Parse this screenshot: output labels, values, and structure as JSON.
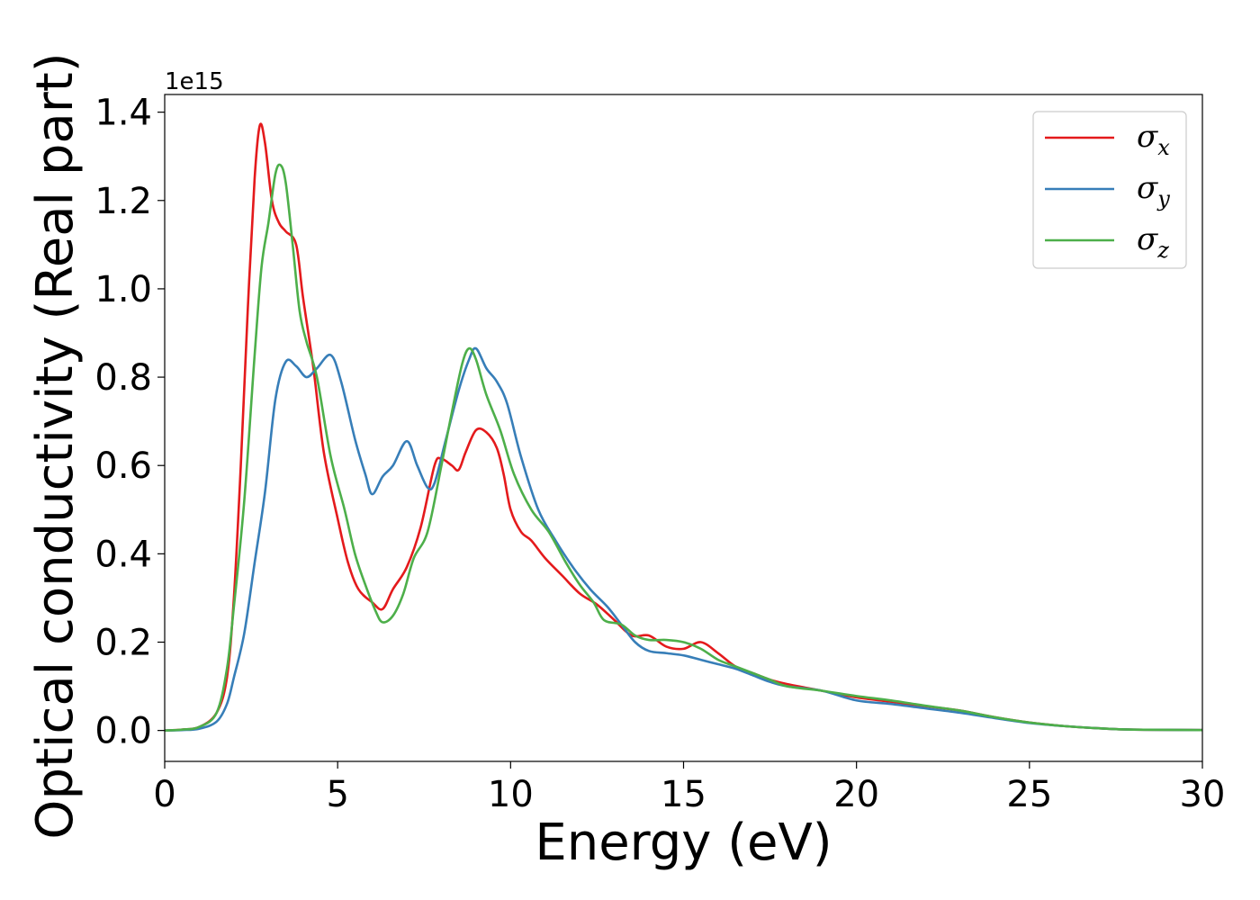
{
  "chart_data": {
    "type": "line",
    "xlabel": "Energy (eV)",
    "ylabel": "Optical conductivity (Real part)",
    "y_offset_label": "1e15",
    "xlim": [
      0,
      30
    ],
    "ylim": [
      -0.07,
      1.44
    ],
    "xticks": [
      0,
      5,
      10,
      15,
      20,
      25,
      30
    ],
    "yticks": [
      0.0,
      0.2,
      0.4,
      0.6,
      0.8,
      1.0,
      1.2,
      1.4
    ],
    "ytick_labels": [
      "0.0",
      "0.2",
      "0.4",
      "0.6",
      "0.8",
      "1.0",
      "1.2",
      "1.4"
    ],
    "xtick_labels": [
      "0",
      "5",
      "10",
      "15",
      "20",
      "25",
      "30"
    ],
    "grid": false,
    "legend_position": "top-right",
    "series": [
      {
        "name": "σx",
        "name_base": "σ",
        "name_sub": "x",
        "color": "#e41a1c",
        "points": [
          [
            0,
            0
          ],
          [
            0.5,
            0.002
          ],
          [
            1,
            0.008
          ],
          [
            1.5,
            0.04
          ],
          [
            1.8,
            0.12
          ],
          [
            2.0,
            0.3
          ],
          [
            2.2,
            0.6
          ],
          [
            2.4,
            0.95
          ],
          [
            2.6,
            1.25
          ],
          [
            2.75,
            1.37
          ],
          [
            2.9,
            1.33
          ],
          [
            3.1,
            1.2
          ],
          [
            3.3,
            1.15
          ],
          [
            3.5,
            1.13
          ],
          [
            3.8,
            1.1
          ],
          [
            4.0,
            0.98
          ],
          [
            4.3,
            0.82
          ],
          [
            4.6,
            0.63
          ],
          [
            5.0,
            0.48
          ],
          [
            5.3,
            0.38
          ],
          [
            5.6,
            0.32
          ],
          [
            6.0,
            0.29
          ],
          [
            6.3,
            0.275
          ],
          [
            6.6,
            0.32
          ],
          [
            7.0,
            0.37
          ],
          [
            7.4,
            0.46
          ],
          [
            7.8,
            0.6
          ],
          [
            8.0,
            0.615
          ],
          [
            8.3,
            0.6
          ],
          [
            8.5,
            0.59
          ],
          [
            8.7,
            0.63
          ],
          [
            9.0,
            0.68
          ],
          [
            9.3,
            0.675
          ],
          [
            9.6,
            0.64
          ],
          [
            9.8,
            0.58
          ],
          [
            10.0,
            0.5
          ],
          [
            10.3,
            0.45
          ],
          [
            10.6,
            0.43
          ],
          [
            11.0,
            0.39
          ],
          [
            11.5,
            0.35
          ],
          [
            12.0,
            0.31
          ],
          [
            12.5,
            0.285
          ],
          [
            13.0,
            0.25
          ],
          [
            13.5,
            0.215
          ],
          [
            14.0,
            0.215
          ],
          [
            14.5,
            0.19
          ],
          [
            15.0,
            0.185
          ],
          [
            15.5,
            0.2
          ],
          [
            16.0,
            0.175
          ],
          [
            16.5,
            0.145
          ],
          [
            17.0,
            0.13
          ],
          [
            17.5,
            0.115
          ],
          [
            18.0,
            0.105
          ],
          [
            19.0,
            0.09
          ],
          [
            20.0,
            0.075
          ],
          [
            21.0,
            0.065
          ],
          [
            22.0,
            0.055
          ],
          [
            23.0,
            0.045
          ],
          [
            24.0,
            0.03
          ],
          [
            25.0,
            0.018
          ],
          [
            26.0,
            0.01
          ],
          [
            27.0,
            0.005
          ],
          [
            28.0,
            0.002
          ],
          [
            30.0,
            0.001
          ]
        ]
      },
      {
        "name": "σy",
        "name_base": "σ",
        "name_sub": "y",
        "color": "#377eb8",
        "points": [
          [
            0,
            0
          ],
          [
            0.5,
            0.001
          ],
          [
            1,
            0.004
          ],
          [
            1.5,
            0.02
          ],
          [
            1.8,
            0.06
          ],
          [
            2.0,
            0.12
          ],
          [
            2.3,
            0.22
          ],
          [
            2.6,
            0.38
          ],
          [
            2.9,
            0.54
          ],
          [
            3.2,
            0.75
          ],
          [
            3.5,
            0.835
          ],
          [
            3.8,
            0.825
          ],
          [
            4.1,
            0.8
          ],
          [
            4.4,
            0.82
          ],
          [
            4.8,
            0.85
          ],
          [
            5.1,
            0.79
          ],
          [
            5.5,
            0.66
          ],
          [
            5.8,
            0.58
          ],
          [
            6.0,
            0.535
          ],
          [
            6.3,
            0.575
          ],
          [
            6.6,
            0.6
          ],
          [
            7.0,
            0.655
          ],
          [
            7.3,
            0.6
          ],
          [
            7.6,
            0.55
          ],
          [
            7.8,
            0.56
          ],
          [
            8.1,
            0.65
          ],
          [
            8.5,
            0.77
          ],
          [
            8.8,
            0.84
          ],
          [
            9.0,
            0.865
          ],
          [
            9.3,
            0.82
          ],
          [
            9.6,
            0.79
          ],
          [
            9.9,
            0.74
          ],
          [
            10.3,
            0.62
          ],
          [
            10.8,
            0.5
          ],
          [
            11.3,
            0.43
          ],
          [
            11.8,
            0.37
          ],
          [
            12.3,
            0.32
          ],
          [
            12.8,
            0.28
          ],
          [
            13.2,
            0.24
          ],
          [
            13.6,
            0.2
          ],
          [
            14.0,
            0.18
          ],
          [
            14.5,
            0.175
          ],
          [
            15.0,
            0.17
          ],
          [
            15.5,
            0.16
          ],
          [
            16.0,
            0.15
          ],
          [
            16.5,
            0.14
          ],
          [
            17.0,
            0.125
          ],
          [
            17.5,
            0.11
          ],
          [
            18.0,
            0.1
          ],
          [
            19.0,
            0.09
          ],
          [
            20.0,
            0.068
          ],
          [
            21.0,
            0.06
          ],
          [
            22.0,
            0.05
          ],
          [
            23.0,
            0.04
          ],
          [
            24.0,
            0.028
          ],
          [
            25.0,
            0.017
          ],
          [
            26.0,
            0.01
          ],
          [
            27.0,
            0.005
          ],
          [
            28.0,
            0.002
          ],
          [
            30.0,
            0.001
          ]
        ]
      },
      {
        "name": "σz",
        "name_base": "σ",
        "name_sub": "z",
        "color": "#4daf4a",
        "points": [
          [
            0,
            0
          ],
          [
            0.5,
            0.002
          ],
          [
            1,
            0.008
          ],
          [
            1.5,
            0.04
          ],
          [
            1.8,
            0.14
          ],
          [
            2.0,
            0.28
          ],
          [
            2.3,
            0.52
          ],
          [
            2.6,
            0.85
          ],
          [
            2.8,
            1.05
          ],
          [
            3.0,
            1.15
          ],
          [
            3.2,
            1.26
          ],
          [
            3.35,
            1.28
          ],
          [
            3.5,
            1.24
          ],
          [
            3.7,
            1.1
          ],
          [
            3.9,
            0.95
          ],
          [
            4.1,
            0.88
          ],
          [
            4.4,
            0.8
          ],
          [
            4.8,
            0.62
          ],
          [
            5.2,
            0.5
          ],
          [
            5.5,
            0.4
          ],
          [
            5.8,
            0.33
          ],
          [
            6.1,
            0.27
          ],
          [
            6.3,
            0.245
          ],
          [
            6.6,
            0.26
          ],
          [
            6.9,
            0.31
          ],
          [
            7.2,
            0.39
          ],
          [
            7.6,
            0.45
          ],
          [
            8.0,
            0.6
          ],
          [
            8.3,
            0.72
          ],
          [
            8.6,
            0.83
          ],
          [
            8.8,
            0.865
          ],
          [
            9.0,
            0.84
          ],
          [
            9.3,
            0.76
          ],
          [
            9.7,
            0.68
          ],
          [
            10.1,
            0.58
          ],
          [
            10.6,
            0.5
          ],
          [
            11.1,
            0.45
          ],
          [
            11.6,
            0.38
          ],
          [
            12.0,
            0.33
          ],
          [
            12.4,
            0.29
          ],
          [
            12.7,
            0.25
          ],
          [
            13.2,
            0.24
          ],
          [
            13.6,
            0.215
          ],
          [
            14.0,
            0.205
          ],
          [
            14.5,
            0.205
          ],
          [
            15.0,
            0.2
          ],
          [
            15.5,
            0.185
          ],
          [
            16.0,
            0.16
          ],
          [
            16.5,
            0.145
          ],
          [
            17.0,
            0.13
          ],
          [
            17.5,
            0.115
          ],
          [
            18.0,
            0.1
          ],
          [
            19.0,
            0.09
          ],
          [
            20.0,
            0.078
          ],
          [
            21.0,
            0.068
          ],
          [
            22.0,
            0.056
          ],
          [
            23.0,
            0.045
          ],
          [
            24.0,
            0.03
          ],
          [
            25.0,
            0.018
          ],
          [
            26.0,
            0.01
          ],
          [
            27.0,
            0.005
          ],
          [
            28.0,
            0.002
          ],
          [
            30.0,
            0.001
          ]
        ]
      }
    ]
  }
}
